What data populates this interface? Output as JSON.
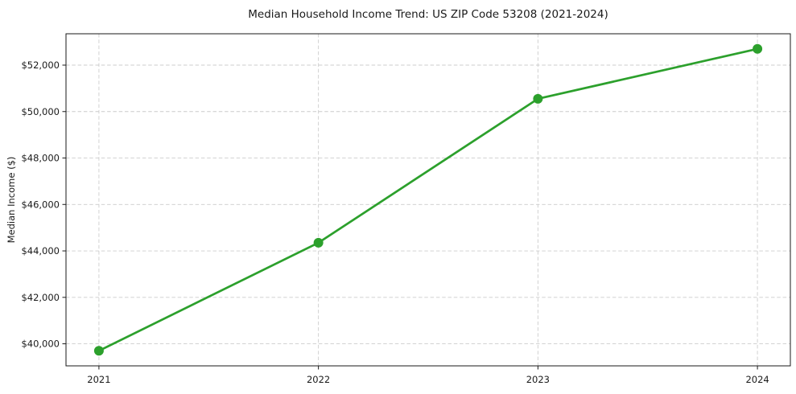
{
  "page": {
    "title": "Median Household Income Trend: US ZIP Code 53208 (2021-2024)"
  },
  "chart_data": {
    "type": "line",
    "title": "Median Household Income Trend: US ZIP Code 53208 (2021-2024)",
    "xlabel": "",
    "ylabel": "Median Income ($)",
    "x": [
      2021,
      2022,
      2023,
      2024
    ],
    "x_tick_labels": [
      "2021",
      "2022",
      "2023",
      "2024"
    ],
    "series": [
      {
        "name": "Median Household Income",
        "values": [
          39700,
          44350,
          50550,
          52700
        ],
        "color": "#2ca02c",
        "marker": "circle",
        "line_width": 2.7,
        "marker_radius": 6
      }
    ],
    "y_ticks": [
      40000,
      42000,
      44000,
      46000,
      48000,
      50000,
      52000
    ],
    "y_tick_labels": [
      "$40,000",
      "$42,000",
      "$44,000",
      "$46,000",
      "$48,000",
      "$50,000",
      "$52,000"
    ],
    "xlim": [
      2020.85,
      2024.15
    ],
    "ylim": [
      39050,
      53350
    ],
    "grid": {
      "visible": true,
      "style": "dashed",
      "color": "#cccccc"
    },
    "legend": "none",
    "colors": {
      "background": "#ffffff",
      "spine": "#1a1a1a",
      "tick": "#1a1a1a",
      "text": "#1a1a1a"
    }
  }
}
